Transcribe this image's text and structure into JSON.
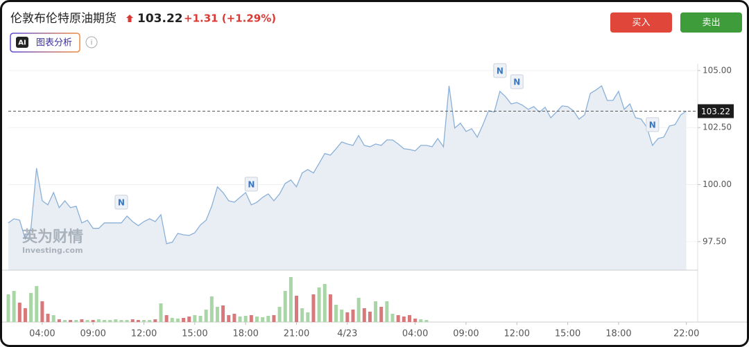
{
  "header": {
    "title": "伦敦布伦特原油期货",
    "price": "103.22",
    "change": "+1.31 (+1.29%)",
    "ai_badge": "AI",
    "ai_button": "图表分析",
    "buy": "买入",
    "sell": "卖出"
  },
  "watermark": {
    "cn": "英为财情",
    "en": "Investing.com"
  },
  "chart_data": {
    "type": "line",
    "x": [
      0,
      1,
      2,
      3,
      4,
      5,
      6,
      7,
      8,
      9,
      10,
      11,
      12,
      13,
      14,
      15,
      16,
      17,
      18,
      19,
      20,
      21,
      22,
      23,
      24,
      25,
      26,
      27,
      28,
      29,
      30,
      31,
      32,
      33,
      34,
      35,
      36,
      37,
      38,
      39,
      40,
      41,
      42,
      43,
      44,
      45,
      46,
      47,
      48,
      49,
      50,
      51,
      52,
      53,
      54,
      55,
      56,
      57,
      58,
      59,
      60,
      61,
      62,
      63,
      64,
      65,
      66,
      67,
      68,
      69,
      70,
      71,
      72,
      73,
      74,
      75,
      76,
      77,
      78,
      79,
      80,
      81,
      82,
      83,
      84,
      85,
      86,
      87,
      88,
      89,
      90,
      91,
      92,
      93,
      94,
      95,
      96,
      97,
      98,
      99,
      100,
      101,
      102,
      103,
      104,
      105,
      106,
      107,
      108,
      109,
      110,
      111,
      112,
      113,
      114,
      115,
      116,
      117,
      118,
      119,
      120
    ],
    "xlim": [
      0,
      122
    ],
    "xticks": [
      {
        "value": 6,
        "label": "04:00"
      },
      {
        "value": 15,
        "label": "09:00"
      },
      {
        "value": 24,
        "label": "12:00"
      },
      {
        "value": 33,
        "label": "15:00"
      },
      {
        "value": 42,
        "label": "18:00"
      },
      {
        "value": 51,
        "label": "21:00"
      },
      {
        "value": 60,
        "label": "4/23"
      },
      {
        "value": 72,
        "label": "04:00"
      },
      {
        "value": 81,
        "label": "09:00"
      },
      {
        "value": 90,
        "label": "12:00"
      },
      {
        "value": 99,
        "label": "15:00"
      },
      {
        "value": 108,
        "label": "18:00"
      },
      {
        "value": 120,
        "label": "22:00"
      }
    ],
    "ylim": [
      96.25,
      105.3
    ],
    "yticks": [
      {
        "value": 97.5,
        "label": "97.50"
      },
      {
        "value": 100,
        "label": "100.00"
      },
      {
        "value": 102.5,
        "label": "102.50"
      },
      {
        "value": 105,
        "label": "105.00"
      }
    ],
    "grid": true,
    "last_price": 103.22,
    "series": [
      {
        "color": "#8ab0d8",
        "fill": "#e9eef5",
        "values": [
          98.32,
          98.5,
          98.44,
          97.62,
          98.08,
          100.72,
          99.29,
          99.11,
          99.65,
          98.99,
          99.29,
          98.99,
          99.05,
          98.32,
          98.44,
          98.08,
          98.08,
          98.32,
          98.32,
          98.32,
          98.32,
          98.62,
          98.38,
          98.2,
          98.38,
          98.5,
          98.38,
          98.68,
          97.41,
          97.47,
          97.86,
          97.8,
          97.77,
          97.89,
          98.23,
          98.44,
          99.05,
          99.9,
          99.65,
          99.29,
          99.23,
          99.44,
          99.65,
          99.11,
          99.23,
          99.44,
          99.59,
          99.29,
          99.59,
          100.05,
          100.2,
          99.9,
          100.51,
          100.66,
          100.51,
          100.93,
          101.36,
          101.29,
          101.57,
          101.87,
          101.78,
          101.72,
          102.15,
          101.72,
          101.66,
          101.78,
          101.72,
          101.96,
          101.96,
          101.78,
          101.57,
          101.54,
          101.48,
          101.72,
          101.72,
          101.66,
          102.02,
          101.66,
          104.33,
          102.48,
          102.69,
          102.33,
          102.45,
          102.08,
          102.63,
          103.24,
          103.18,
          104.09,
          103.85,
          103.54,
          103.6,
          103.48,
          103.3,
          103.42,
          103.18,
          103.39,
          102.93,
          103.18,
          103.45,
          103.42,
          103.24,
          102.87,
          103.06,
          104.0,
          104.15,
          104.33,
          103.69,
          103.69,
          104.09,
          103.3,
          103.54,
          102.93,
          102.87,
          102.51,
          101.72,
          102.02,
          102.08,
          102.57,
          102.63,
          103.06,
          103.22
        ]
      }
    ],
    "volume": {
      "up_color": "#a9d6a6",
      "down_color": "#d8787b",
      "vlim": [
        0,
        70
      ],
      "values": [
        40,
        45,
        28,
        20,
        42,
        52,
        30,
        12,
        10,
        4,
        3,
        3,
        3,
        4,
        3,
        3,
        4,
        3,
        3,
        4,
        3,
        3,
        4,
        3,
        3,
        3,
        4,
        27,
        10,
        6,
        5,
        6,
        8,
        10,
        9,
        18,
        37,
        22,
        24,
        10,
        12,
        8,
        9,
        10,
        8,
        7,
        9,
        10,
        22,
        45,
        65,
        38,
        20,
        14,
        40,
        50,
        55,
        40,
        25,
        18,
        14,
        18,
        35,
        20,
        15,
        30,
        22,
        30,
        12,
        10,
        8,
        10,
        5,
        4,
        3,
        null,
        null,
        null,
        null,
        null,
        null,
        null,
        null,
        null,
        null,
        null,
        null,
        null,
        null,
        null,
        null,
        null,
        null,
        null,
        null,
        null,
        null,
        null,
        null,
        null,
        null,
        null,
        null,
        null,
        null,
        null,
        null,
        null,
        null,
        null,
        null,
        null,
        null,
        null,
        null,
        null,
        null,
        null,
        null,
        null,
        null
      ]
    },
    "news": [
      {
        "x": 20,
        "label": "N"
      },
      {
        "x": 43,
        "label": "N"
      },
      {
        "x": 87,
        "label": "N"
      },
      {
        "x": 90,
        "label": "N"
      },
      {
        "x": 114,
        "label": "N"
      }
    ]
  }
}
